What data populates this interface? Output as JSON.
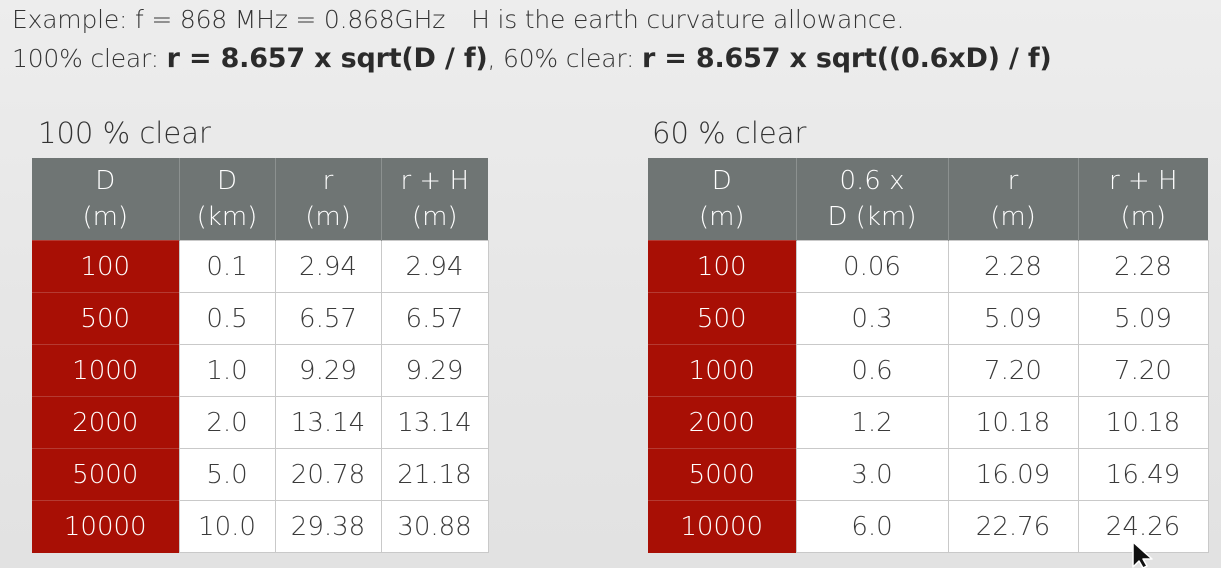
{
  "header": {
    "line1_a": "Example: f = 868 MHz = 0.868GHz",
    "line1_b": "H is the earth curvature allowance.",
    "line2_label1": "100% clear: ",
    "line2_formula1": "r = 8.657 x sqrt(D / f)",
    "line2_sep": ", 60% clear: ",
    "line2_formula2": "r = 8.657 x sqrt((0.6xD) / f)"
  },
  "table1": {
    "title": "100 % clear",
    "headers": [
      [
        "D",
        "(m)"
      ],
      [
        "D",
        "(km)"
      ],
      [
        "r",
        "(m)"
      ],
      [
        "r + H",
        "(m)"
      ]
    ],
    "rows": [
      [
        "100",
        "0.1",
        "2.94",
        "2.94"
      ],
      [
        "500",
        "0.5",
        "6.57",
        "6.57"
      ],
      [
        "1000",
        "1.0",
        "9.29",
        "9.29"
      ],
      [
        "2000",
        "2.0",
        "13.14",
        "13.14"
      ],
      [
        "5000",
        "5.0",
        "20.78",
        "21.18"
      ],
      [
        "10000",
        "10.0",
        "29.38",
        "30.88"
      ]
    ]
  },
  "table2": {
    "title": "60 % clear",
    "headers": [
      [
        "D",
        "(m)"
      ],
      [
        "0.6 x",
        "D (km)"
      ],
      [
        "r",
        "(m)"
      ],
      [
        "r + H",
        "(m)"
      ]
    ],
    "rows": [
      [
        "100",
        "0.06",
        "2.28",
        "2.28"
      ],
      [
        "500",
        "0.3",
        "5.09",
        "5.09"
      ],
      [
        "1000",
        "0.6",
        "7.20",
        "7.20"
      ],
      [
        "2000",
        "1.2",
        "10.18",
        "10.18"
      ],
      [
        "5000",
        "3.0",
        "16.09",
        "16.49"
      ],
      [
        "10000",
        "6.0",
        "22.76",
        "24.26"
      ]
    ]
  },
  "colors": {
    "header_bg": "#6f7574",
    "first_column_bg": "#a80f05",
    "cell_bg": "#ffffff"
  },
  "icons": {
    "cursor": "mouse-pointer-icon"
  }
}
